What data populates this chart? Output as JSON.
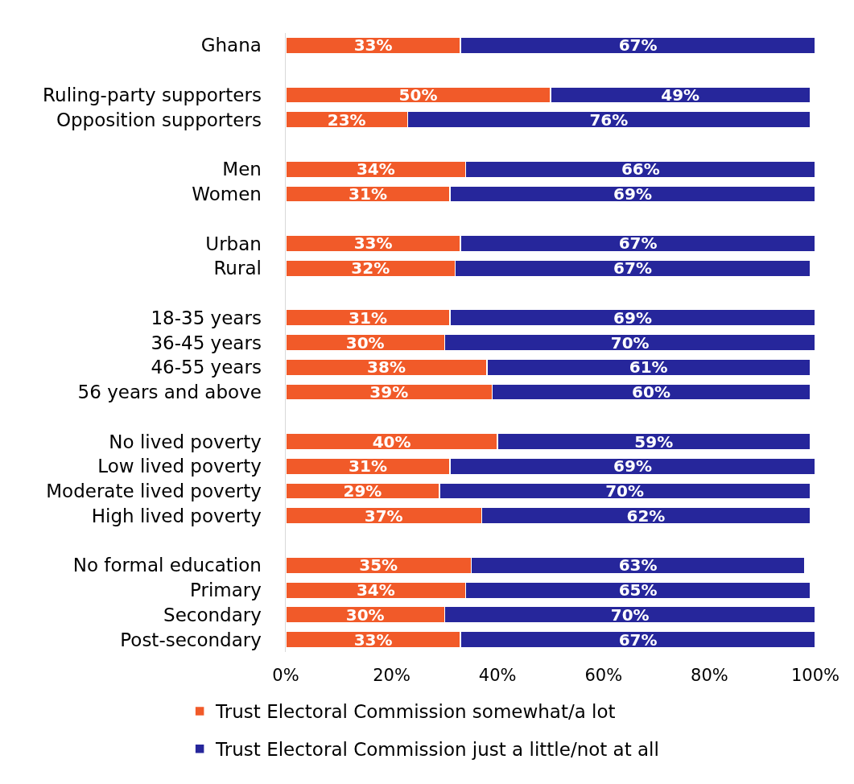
{
  "chart_data": {
    "type": "bar",
    "orientation": "horizontal",
    "stacked": true,
    "categories": [
      "Ghana",
      null,
      "Ruling-party supporters",
      "Opposition supporters",
      null,
      "Men",
      "Women",
      null,
      "Urban",
      "Rural",
      null,
      "18-35 years",
      "36-45 years",
      "46-55 years",
      "56 years and above",
      null,
      "No lived poverty",
      "Low lived poverty",
      "Moderate lived poverty",
      "High lived poverty",
      null,
      "No formal education",
      "Primary",
      "Secondary",
      "Post-secondary"
    ],
    "series": [
      {
        "name": "Trust Electoral Commission somewhat/a lot",
        "color": "#f15a29",
        "values": [
          33,
          null,
          50,
          23,
          null,
          34,
          31,
          null,
          33,
          32,
          null,
          31,
          30,
          38,
          39,
          null,
          40,
          31,
          29,
          37,
          null,
          35,
          34,
          30,
          33
        ],
        "value_labels": [
          "33%",
          null,
          "50%",
          "23%",
          null,
          "34%",
          "31%",
          null,
          "33%",
          "32%",
          null,
          "31%",
          "30%",
          "38%",
          "39%",
          null,
          "40%",
          "31%",
          "29%",
          "37%",
          null,
          "35%",
          "34%",
          "30%",
          "33%"
        ]
      },
      {
        "name": "Trust Electoral Commission just a little/not at all",
        "color": "#26269b",
        "values": [
          67,
          null,
          49,
          76,
          null,
          66,
          69,
          null,
          67,
          67,
          null,
          69,
          70,
          61,
          60,
          null,
          59,
          69,
          70,
          62,
          null,
          63,
          65,
          70,
          67
        ],
        "value_labels": [
          "67%",
          null,
          "49%",
          "76%",
          null,
          "66%",
          "69%",
          null,
          "67%",
          "67%",
          null,
          "69%",
          "70%",
          "61%",
          "60%",
          null,
          "59%",
          "69%",
          "70%",
          "62%",
          null,
          "63%",
          "65%",
          "70%",
          "67%"
        ]
      }
    ],
    "xlim": [
      0,
      100
    ],
    "xticks": [
      {
        "value": 0,
        "label": "0%"
      },
      {
        "value": 20,
        "label": "20%"
      },
      {
        "value": 40,
        "label": "40%"
      },
      {
        "value": 60,
        "label": "60%"
      },
      {
        "value": 80,
        "label": "80%"
      },
      {
        "value": 100,
        "label": "100%"
      }
    ],
    "legend": "bottom"
  }
}
